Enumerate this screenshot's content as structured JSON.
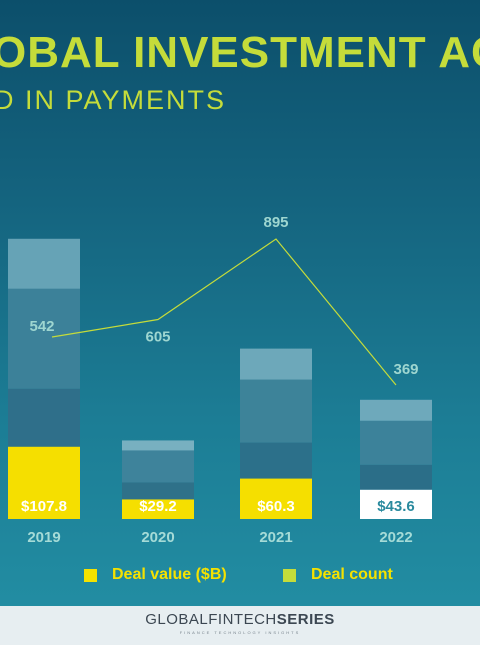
{
  "header": {
    "title": "OBAL INVESTMENT AC",
    "subtitle": "D IN PAYMENTS"
  },
  "chart_data": {
    "type": "bar",
    "categories": [
      "2019",
      "2020",
      "2021",
      "2022"
    ],
    "series": [
      {
        "name": "Deal value ($B)",
        "values": [
          107.8,
          29.2,
          60.3,
          43.6
        ],
        "labels": [
          "$107.8",
          "$29.2",
          "$60.3",
          "$43.6"
        ]
      },
      {
        "name": "Deal count",
        "values": [
          542,
          605,
          895,
          369
        ],
        "type": "line"
      }
    ],
    "colors": {
      "deal_value": "#f5df00",
      "deal_value_2022": "#ffffff",
      "deal_count_line": "#c5dc3a",
      "count_label": "#9ed6d0",
      "axis_label": "#a5dbd7",
      "legend_swatch": "#f5e200",
      "legend_swatch_count": "#c5dc3a"
    }
  },
  "legend": {
    "deal_value": "Deal value ($B)",
    "deal_count": "Deal count"
  },
  "footer": {
    "brand_light": "GLOBALFINTECH",
    "brand_bold": "SERIES",
    "tagline": "FINANCE TECHNOLOGY INSIGHTS"
  }
}
